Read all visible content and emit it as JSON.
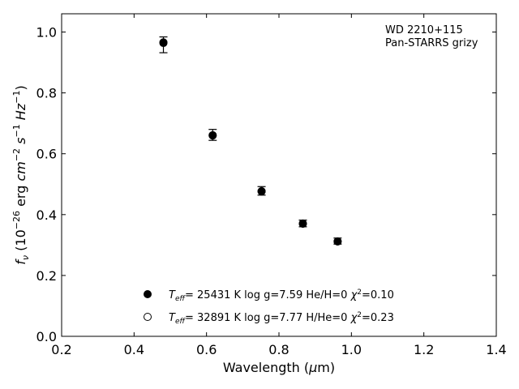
{
  "chart_data": {
    "type": "scatter",
    "xlabel": "Wavelength (μm)",
    "ylabel": "fν (10⁻²⁶ erg cm⁻² s⁻¹ Hz⁻¹)",
    "xlim": [
      0.2,
      1.4
    ],
    "ylim": [
      0.0,
      1.06
    ],
    "xticks": [
      "0.2",
      "0.4",
      "0.6",
      "0.8",
      "1.0",
      "1.2",
      "1.4"
    ],
    "yticks": [
      "0.0",
      "0.2",
      "0.4",
      "0.6",
      "0.8",
      "1.0"
    ],
    "annotation": [
      "WD 2210+115",
      "Pan-STARRS grizy"
    ],
    "grid": false,
    "legend_position": "bottom-center",
    "observed": {
      "x": [
        0.481,
        0.617,
        0.752,
        0.866,
        0.962
      ],
      "y": [
        0.958,
        0.662,
        0.478,
        0.371,
        0.313
      ],
      "yerr": [
        0.026,
        0.018,
        0.014,
        0.011,
        0.01
      ]
    },
    "series": [
      {
        "name": "Teff= 25431 K  log g=7.59  He/H=0  χ²=0.10",
        "marker": "filled",
        "x": [
          0.481,
          0.617,
          0.752,
          0.866,
          0.962
        ],
        "y": [
          0.964,
          0.66,
          0.476,
          0.37,
          0.312
        ]
      },
      {
        "name": "Teff= 32891 K  log g=7.77  H/He=0  χ²=0.23",
        "marker": "open",
        "x": [
          0.481,
          0.617,
          0.752,
          0.866,
          0.962
        ],
        "y": [
          0.966,
          0.661,
          0.477,
          0.371,
          0.312
        ]
      }
    ]
  }
}
